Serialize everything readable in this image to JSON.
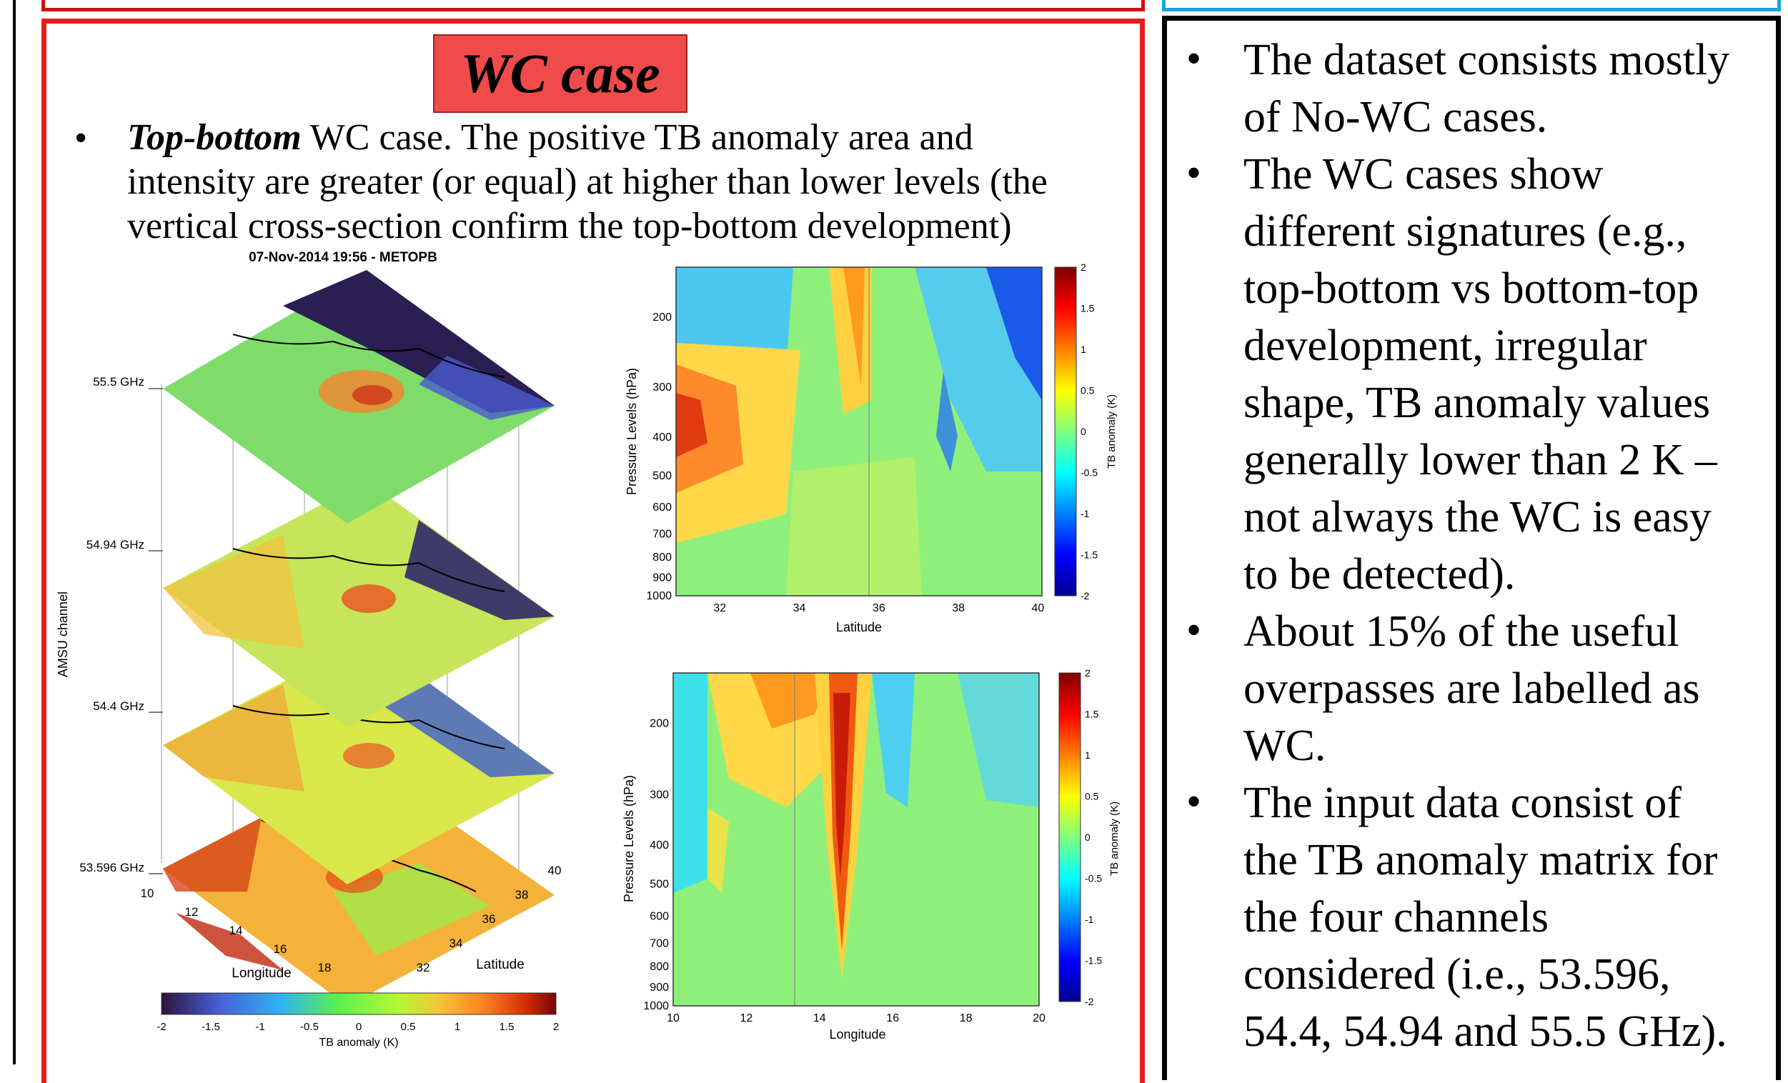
{
  "left_panel": {
    "title": "WC case",
    "bullet_bold": "Top-bottom",
    "bullet_line1": " WC case. The positive TB anomaly area and",
    "bullet_line2": "intensity are greater (or equal) at higher than lower levels (the",
    "bullet_line3": "vertical cross-section confirm the top-bottom development)",
    "map_figure": {
      "title": "07-Nov-2014 19:56 - METOPB",
      "ylabel": "AMSU channel",
      "channels": [
        "55.5 GHz",
        "54.94 GHz",
        "54.4 GHz",
        "53.596 GHz"
      ],
      "xlabel": "Longitude",
      "xticks": [
        "10",
        "12",
        "14",
        "16",
        "18"
      ],
      "latlabel": "Latitude",
      "latticks": [
        "32",
        "34",
        "36",
        "38",
        "40"
      ],
      "colorbar_label": "TB anomaly (K)",
      "colorbar_ticks": [
        "-2",
        "-1.5",
        "-1",
        "-0.5",
        "0",
        "0.5",
        "1",
        "1.5",
        "2"
      ]
    }
  },
  "right_panel": {
    "bullets": [
      [
        "The dataset consists mostly",
        "of No-WC cases."
      ],
      [
        "The WC cases show",
        "different signatures (e.g.,",
        "top-bottom vs bottom-top",
        "development, irregular",
        "shape, TB anomaly values",
        "generally lower than 2 K –",
        "not always the WC is easy",
        "to be detected)."
      ],
      [
        "About 15% of the useful",
        "overpasses are labelled as",
        "WC."
      ],
      [
        "The input data consist of",
        "the TB anomaly matrix for",
        "the four channels",
        "considered (i.e., 53.596,",
        "54.4, 54.94 and 55.5 GHz)."
      ]
    ]
  },
  "chart_data": [
    {
      "type": "heatmap",
      "xlabel": "Latitude",
      "ylabel": "Pressure Levels (hPa)",
      "xticks": [
        32,
        34,
        36,
        38,
        40
      ],
      "yticks": [
        200,
        300,
        400,
        500,
        600,
        700,
        800,
        900,
        1000
      ],
      "xlim": [
        30.9,
        40.1
      ],
      "colorbar_label": "TB anomaly (K)",
      "colorbar_ticks": [
        -2,
        -1.5,
        -1,
        -0.5,
        0,
        0.5,
        1,
        1.5,
        2
      ]
    },
    {
      "type": "heatmap",
      "xlabel": "Longitude",
      "ylabel": "Pressure Levels (hPa)",
      "xticks": [
        10,
        12,
        14,
        16,
        18,
        20
      ],
      "yticks": [
        200,
        300,
        400,
        500,
        600,
        700,
        800,
        900,
        1000
      ],
      "xlim": [
        10,
        20
      ],
      "colorbar_label": "TB anomaly (K)",
      "colorbar_ticks": [
        -2,
        -1.5,
        -1,
        -0.5,
        0,
        0.5,
        1,
        1.5,
        2
      ]
    }
  ]
}
